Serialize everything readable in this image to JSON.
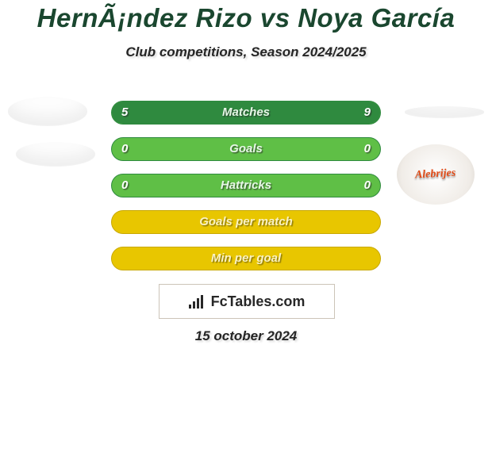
{
  "title": "HernÃ¡ndez Rizo vs Noya García",
  "subtitle": "Club competitions, Season 2024/2025",
  "date_line": "15 october 2024",
  "brand_text": "FcTables.com",
  "right_badge_label": "Alebrijes",
  "colors": {
    "title": "#1a472f",
    "green_bar_fill": "#5fbf46",
    "green_bar_dark": "#2f8a3f",
    "yellow_bar_fill": "#e8c600",
    "yellow_bar_border": "#c8a800",
    "background": "#ffffff"
  },
  "rows": [
    {
      "label": "Matches",
      "left": "5",
      "right": "9",
      "style": "green",
      "left_pct": 35,
      "right_pct": 65
    },
    {
      "label": "Goals",
      "left": "0",
      "right": "0",
      "style": "green",
      "left_pct": 0,
      "right_pct": 0
    },
    {
      "label": "Hattricks",
      "left": "0",
      "right": "0",
      "style": "green",
      "left_pct": 0,
      "right_pct": 0
    },
    {
      "label": "Goals per match",
      "left": "",
      "right": "",
      "style": "yellow",
      "left_pct": 0,
      "right_pct": 0
    },
    {
      "label": "Min per goal",
      "left": "",
      "right": "",
      "style": "yellow",
      "left_pct": 0,
      "right_pct": 0
    }
  ]
}
